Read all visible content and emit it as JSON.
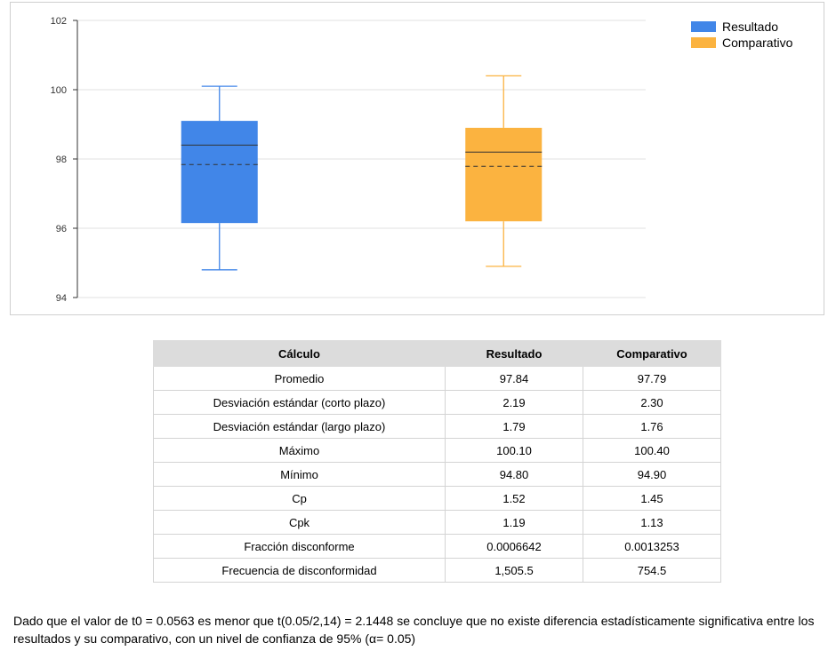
{
  "chart_data": {
    "type": "boxplot",
    "ylim": [
      94,
      102
    ],
    "yticks": [
      94,
      96,
      98,
      100,
      102
    ],
    "grid": true,
    "legend_position": "top-right",
    "series": [
      {
        "name": "Resultado",
        "color": "#4186e8",
        "min": 94.8,
        "q1": 96.15,
        "median": 98.4,
        "mean": 97.84,
        "q3": 99.1,
        "max": 100.1
      },
      {
        "name": "Comparativo",
        "color": "#fbb340",
        "min": 94.9,
        "q1": 96.2,
        "median": 98.2,
        "mean": 97.79,
        "q3": 98.9,
        "max": 100.4
      }
    ]
  },
  "table": {
    "headers": [
      "Cálculo",
      "Resultado",
      "Comparativo"
    ],
    "rows": [
      [
        "Promedio",
        "97.84",
        "97.79"
      ],
      [
        "Desviación estándar (corto plazo)",
        "2.19",
        "2.30"
      ],
      [
        "Desviación estándar (largo plazo)",
        "1.79",
        "1.76"
      ],
      [
        "Máximo",
        "100.10",
        "100.40"
      ],
      [
        "Mínimo",
        "94.80",
        "94.90"
      ],
      [
        "Cp",
        "1.52",
        "1.45"
      ],
      [
        "Cpk",
        "1.19",
        "1.13"
      ],
      [
        "Fracción disconforme",
        "0.0006642",
        "0.0013253"
      ],
      [
        "Frecuencia de disconformidad",
        "1,505.5",
        "754.5"
      ]
    ]
  },
  "conclusion": "Dado que el valor de t0 = 0.0563 es menor que t(0.05/2,14) = 2.1448 se concluye que no existe diferencia estadísticamente significativa entre los resultados y su comparativo, con un nivel de confianza de 95% (α= 0.05)"
}
